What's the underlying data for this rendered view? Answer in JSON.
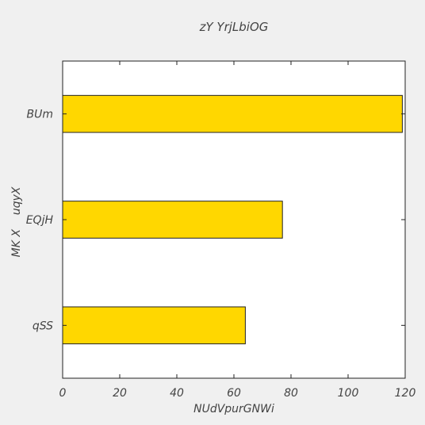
{
  "chart_data": {
    "type": "bar",
    "orientation": "horizontal",
    "title": "zY  YrjLbiOG",
    "xlabel": "NUdVpurGNWi",
    "ylabel": "MK X    uqyX",
    "categories": [
      "BUm",
      "EQjH",
      "qSS"
    ],
    "values": [
      119,
      77,
      64
    ],
    "xlim": [
      0,
      120
    ],
    "xticks": [
      0,
      20,
      40,
      60,
      80,
      100,
      120
    ],
    "grid": false,
    "bar_color": "#ffd700",
    "edge_color": "#222222",
    "background": "#f0f0f0",
    "plot_background": "#ffffff"
  }
}
